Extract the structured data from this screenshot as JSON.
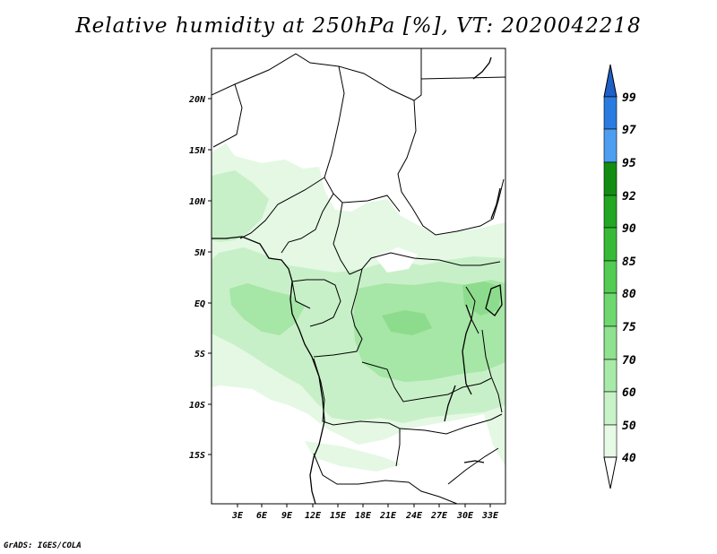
{
  "title": "Relative humidity at 250hPa [%], VT: 2020042218",
  "credit": "GrADS: IGES/COLA",
  "map": {
    "lat_labels": [
      "20N",
      "15N",
      "10N",
      "5N",
      "EQ",
      "5S",
      "10S",
      "15S"
    ],
    "lon_labels": [
      "3E",
      "6E",
      "9E",
      "12E",
      "15E",
      "18E",
      "21E",
      "24E",
      "27E",
      "30E",
      "33E"
    ]
  },
  "colorbar": {
    "levels": [
      "40",
      "50",
      "60",
      "70",
      "75",
      "80",
      "85",
      "90",
      "92",
      "95",
      "97",
      "99"
    ],
    "colors": [
      "#ffffff",
      "#e6fae6",
      "#c8f2c8",
      "#a8eaa8",
      "#8fe28f",
      "#6ed86e",
      "#52cc52",
      "#37bb37",
      "#22a722",
      "#118e11",
      "#4d9ef0",
      "#2a7ce0",
      "#1e5fc8"
    ]
  }
}
